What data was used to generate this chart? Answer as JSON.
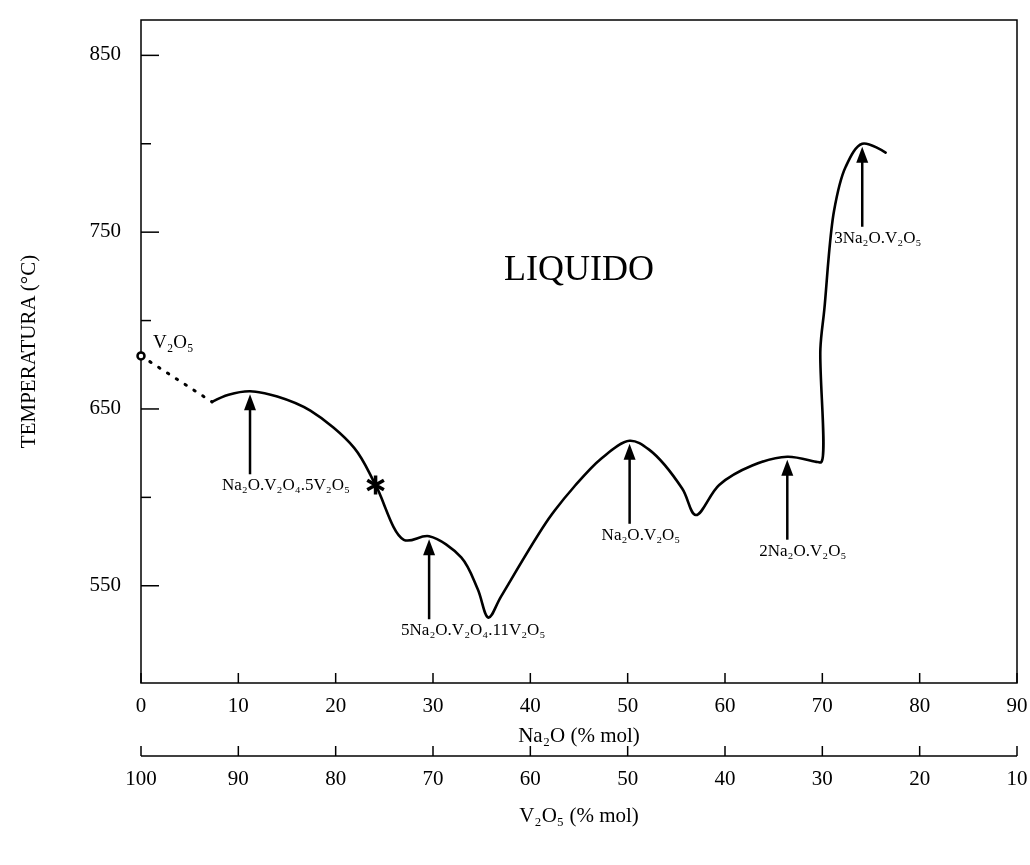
{
  "chart_data": {
    "type": "line",
    "xlabel": "Na₂O  (% mol)",
    "ylabel": "TEMPERATURA  (°C)",
    "x2label": "V₂O₅  (% mol)",
    "xlim": [
      0,
      90
    ],
    "xticks": [
      0,
      10,
      20,
      30,
      40,
      50,
      60,
      70,
      80,
      90
    ],
    "x2lim": [
      100,
      10
    ],
    "x2ticks": [
      100,
      90,
      80,
      70,
      60,
      50,
      40,
      30,
      20,
      10
    ],
    "ylim": [
      495,
      870
    ],
    "yticks": [
      550,
      {
        "value": 600,
        "label": null
      },
      650,
      {
        "value": 700,
        "label": null
      },
      750,
      {
        "value": 800,
        "label": null
      },
      850
    ],
    "grid": false,
    "series": [
      {
        "color": "#000000",
        "line_style": "solid",
        "x": [
          7.3,
          9,
          11.2,
          14,
          17.4,
          21.9,
          24.1,
          27,
          29.6,
          32.9,
          34.6,
          35.7,
          37,
          41.9,
          44.5,
          47.3,
          50.2,
          52.2,
          55.6,
          57,
          59.4,
          62.8,
          66.4,
          69.5,
          69.9,
          69.8,
          70.2,
          71.2,
          72.4,
          74.1,
          76.5
        ],
        "values": [
          654,
          658,
          660,
          657,
          649,
          628,
          607,
          576,
          578,
          566,
          548,
          532,
          544,
          588,
          606,
          622,
          632,
          627,
          605,
          590,
          607,
          618,
          623,
          620,
          620,
          684,
          706,
          762,
          787,
          800,
          795
        ]
      },
      {
        "type": "line",
        "color": "#000000",
        "line_style": "dotted",
        "x": [
          0,
          7.3
        ],
        "values": [
          680,
          654
        ]
      },
      {
        "type": "scatter",
        "name": "V₂O₅",
        "color": "#000000",
        "marker": "circle",
        "x": [
          0
        ],
        "values": [
          680
        ]
      },
      {
        "type": "scatter",
        "color": "#000000",
        "marker": "cross",
        "x": [
          24.1
        ],
        "values": [
          607
        ]
      }
    ],
    "annotations": [
      "LIQUIDO",
      "Na₂O.V₂O₄.5V₂O₅",
      "5Na₂O.V₂O₄.11V₂O₅",
      "Na₂O.V₂O₅",
      "2Na₂O.V₂O₅",
      "3Na₂O.V₂O₅"
    ]
  }
}
